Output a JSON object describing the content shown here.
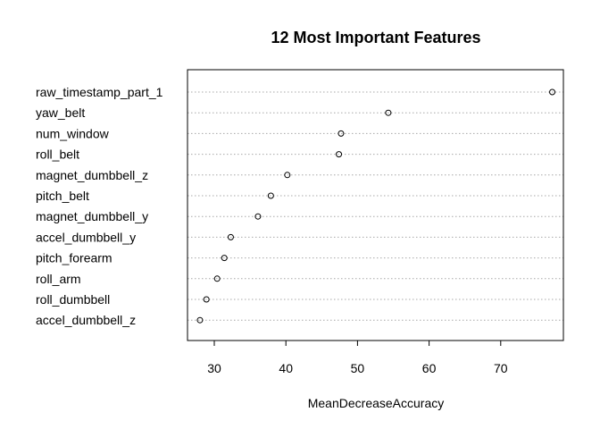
{
  "chart_data": {
    "type": "scatter",
    "title": "12 Most Important Features",
    "xlabel": "MeanDecreaseAccuracy",
    "ylabel": "",
    "categories": [
      "raw_timestamp_part_1",
      "yaw_belt",
      "num_window",
      "roll_belt",
      "magnet_dumbbell_z",
      "pitch_belt",
      "magnet_dumbbell_y",
      "accel_dumbbell_y",
      "pitch_forearm",
      "roll_arm",
      "roll_dumbbell",
      "accel_dumbbell_z"
    ],
    "values": [
      77.2,
      54.3,
      47.7,
      47.4,
      40.2,
      37.9,
      36.1,
      32.3,
      31.4,
      30.4,
      28.9,
      28.0
    ],
    "xticks": [
      30,
      40,
      50,
      60,
      70
    ],
    "xlim": [
      26,
      78
    ],
    "grid": "dotted horizontal lines per feature",
    "marker": "open circle",
    "colors": {
      "points": "#000000",
      "grid": "#a8a8a8",
      "frame": "#000000"
    }
  }
}
